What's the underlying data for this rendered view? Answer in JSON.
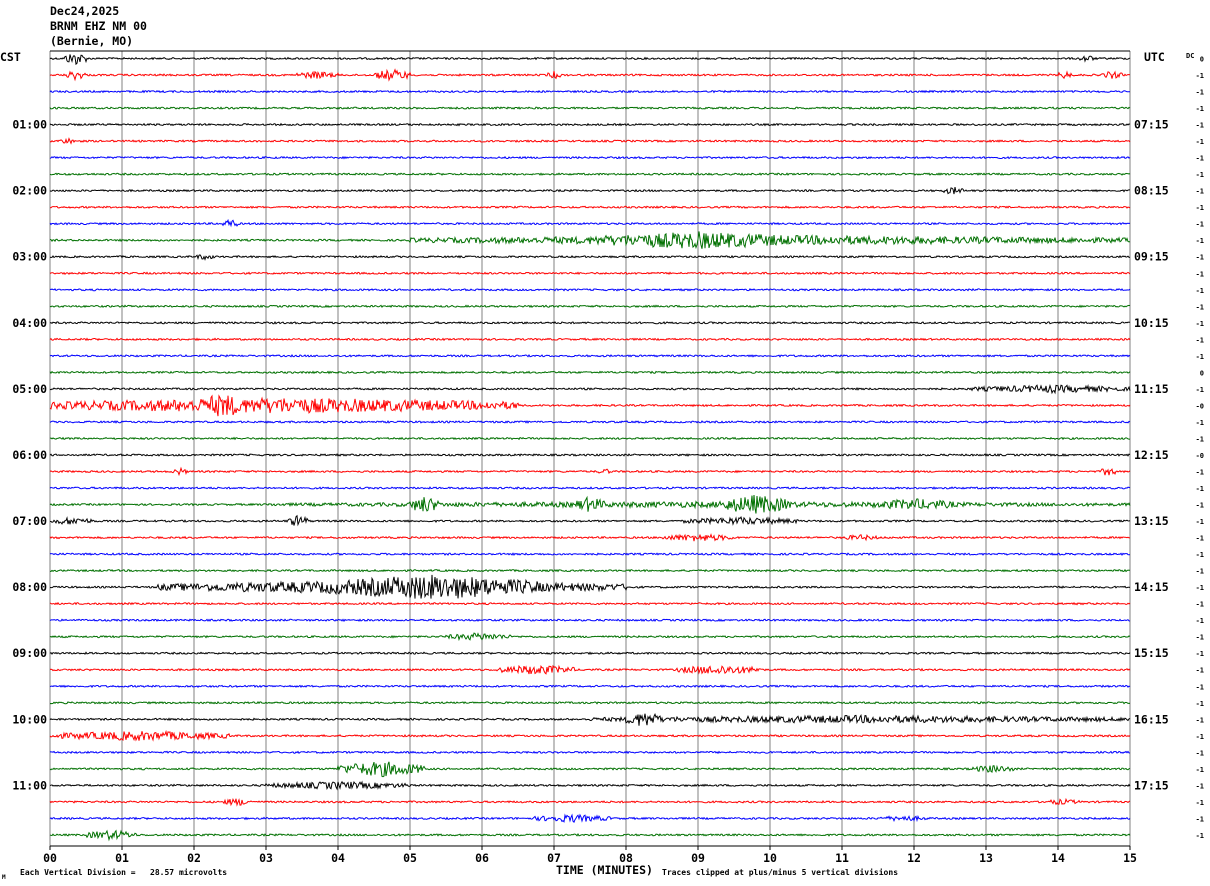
{
  "header": {
    "date": "Dec24,2025",
    "station": "BRNM EHZ NM 00",
    "location": "(Bernie, MO)"
  },
  "left_timezone": "CST",
  "right_timezone": "UTC",
  "dc_label": "DC",
  "footer": {
    "vertical_division": "Each Vertical Division =   28.57 microvolts",
    "xaxis_title": "TIME (MINUTES)",
    "clip_note": "Traces clipped at plus/minus 5 vertical divisions",
    "corner_mark": "M"
  },
  "colors": {
    "trace_cycle": [
      "#000000",
      "#ff0000",
      "#0000ff",
      "#007000"
    ],
    "grid": "#808080"
  },
  "chart_data": {
    "type": "line",
    "title": "BRNM EHZ NM 00",
    "xlabel": "TIME (MINUTES)",
    "xlim": [
      0,
      15
    ],
    "x_ticks": [
      "00",
      "01",
      "02",
      "03",
      "04",
      "05",
      "06",
      "07",
      "08",
      "09",
      "10",
      "11",
      "12",
      "13",
      "14",
      "15"
    ],
    "trace_count": 48,
    "minutes_per_trace": 15,
    "left_hour_labels": [
      {
        "trace": 4,
        "label": "01:00"
      },
      {
        "trace": 8,
        "label": "02:00"
      },
      {
        "trace": 12,
        "label": "03:00"
      },
      {
        "trace": 16,
        "label": "04:00"
      },
      {
        "trace": 20,
        "label": "05:00"
      },
      {
        "trace": 24,
        "label": "06:00"
      },
      {
        "trace": 28,
        "label": "07:00"
      },
      {
        "trace": 32,
        "label": "08:00"
      },
      {
        "trace": 36,
        "label": "09:00"
      },
      {
        "trace": 40,
        "label": "10:00"
      },
      {
        "trace": 44,
        "label": "11:00"
      }
    ],
    "right_hour_labels": [
      {
        "trace": 4,
        "label": "07:15"
      },
      {
        "trace": 8,
        "label": "08:15"
      },
      {
        "trace": 12,
        "label": "09:15"
      },
      {
        "trace": 16,
        "label": "10:15"
      },
      {
        "trace": 20,
        "label": "11:15"
      },
      {
        "trace": 24,
        "label": "12:15"
      },
      {
        "trace": 28,
        "label": "13:15"
      },
      {
        "trace": 32,
        "label": "14:15"
      },
      {
        "trace": 36,
        "label": "15:15"
      },
      {
        "trace": 40,
        "label": "16:15"
      },
      {
        "trace": 44,
        "label": "17:15"
      }
    ],
    "dc_offsets": [
      "0",
      "-1",
      "-1",
      "-1",
      "-1",
      "-1",
      "-1",
      "-1",
      "-1",
      "-1",
      "-1",
      "-1",
      "-1",
      "-1",
      "-1",
      "-1",
      "-1",
      "-1",
      "-1",
      "0",
      "-1",
      "-0",
      "-1",
      "-1",
      "-0",
      "-1",
      "-1",
      "-1",
      "-1",
      "-1",
      "-1",
      "-1",
      "-1",
      "-1",
      "-1",
      "-1",
      "-1",
      "-1",
      "-1",
      "-1",
      "-1",
      "-1",
      "-1",
      "-1",
      "-1",
      "-1",
      "-1",
      "-1"
    ],
    "events": [
      {
        "trace": 0,
        "start": 0.2,
        "end": 0.5,
        "amp": 7
      },
      {
        "trace": 0,
        "start": 14.3,
        "end": 14.5,
        "amp": 4
      },
      {
        "trace": 1,
        "start": 0.2,
        "end": 0.5,
        "amp": 5
      },
      {
        "trace": 1,
        "start": 3.4,
        "end": 4.0,
        "amp": 4
      },
      {
        "trace": 1,
        "start": 4.5,
        "end": 5.0,
        "amp": 6
      },
      {
        "trace": 1,
        "start": 6.9,
        "end": 7.1,
        "amp": 4
      },
      {
        "trace": 1,
        "start": 14.0,
        "end": 14.2,
        "amp": 4
      },
      {
        "trace": 1,
        "start": 14.6,
        "end": 14.9,
        "amp": 4
      },
      {
        "trace": 5,
        "start": 0.1,
        "end": 0.4,
        "amp": 3
      },
      {
        "trace": 8,
        "start": 12.4,
        "end": 12.7,
        "amp": 4
      },
      {
        "trace": 10,
        "start": 2.4,
        "end": 2.6,
        "amp": 5
      },
      {
        "trace": 11,
        "start": 5.0,
        "end": 15.0,
        "amp": 5
      },
      {
        "trace": 11,
        "start": 7.5,
        "end": 10.5,
        "amp": 9
      },
      {
        "trace": 12,
        "start": 2.0,
        "end": 2.3,
        "amp": 3
      },
      {
        "trace": 20,
        "start": 12.8,
        "end": 15.0,
        "amp": 4
      },
      {
        "trace": 21,
        "start": 0.0,
        "end": 6.5,
        "amp": 8
      },
      {
        "trace": 21,
        "start": 2.0,
        "end": 2.8,
        "amp": 12
      },
      {
        "trace": 25,
        "start": 1.7,
        "end": 1.9,
        "amp": 4
      },
      {
        "trace": 25,
        "start": 7.6,
        "end": 7.8,
        "amp": 3
      },
      {
        "trace": 25,
        "start": 14.6,
        "end": 14.8,
        "amp": 5
      },
      {
        "trace": 27,
        "start": 3.0,
        "end": 15.0,
        "amp": 3
      },
      {
        "trace": 27,
        "start": 5.0,
        "end": 5.4,
        "amp": 9
      },
      {
        "trace": 27,
        "start": 7.3,
        "end": 7.7,
        "amp": 8
      },
      {
        "trace": 27,
        "start": 9.3,
        "end": 10.3,
        "amp": 10
      },
      {
        "trace": 27,
        "start": 11.4,
        "end": 12.6,
        "amp": 6
      },
      {
        "trace": 28,
        "start": 0.0,
        "end": 0.6,
        "amp": 4
      },
      {
        "trace": 28,
        "start": 3.3,
        "end": 3.6,
        "amp": 6
      },
      {
        "trace": 28,
        "start": 8.8,
        "end": 10.4,
        "amp": 4
      },
      {
        "trace": 29,
        "start": 8.5,
        "end": 9.5,
        "amp": 4
      },
      {
        "trace": 29,
        "start": 11.0,
        "end": 11.5,
        "amp": 3
      },
      {
        "trace": 32,
        "start": 1.5,
        "end": 8.0,
        "amp": 7
      },
      {
        "trace": 32,
        "start": 3.8,
        "end": 6.8,
        "amp": 13
      },
      {
        "trace": 35,
        "start": 5.5,
        "end": 6.4,
        "amp": 4
      },
      {
        "trace": 37,
        "start": 6.2,
        "end": 7.3,
        "amp": 5
      },
      {
        "trace": 37,
        "start": 8.7,
        "end": 9.9,
        "amp": 5
      },
      {
        "trace": 40,
        "start": 7.5,
        "end": 15.0,
        "amp": 4
      },
      {
        "trace": 40,
        "start": 8.0,
        "end": 8.5,
        "amp": 8
      },
      {
        "trace": 41,
        "start": 0.0,
        "end": 2.5,
        "amp": 5
      },
      {
        "trace": 43,
        "start": 4.0,
        "end": 5.2,
        "amp": 8
      },
      {
        "trace": 43,
        "start": 12.8,
        "end": 13.4,
        "amp": 4
      },
      {
        "trace": 44,
        "start": 3.0,
        "end": 5.0,
        "amp": 4
      },
      {
        "trace": 45,
        "start": 2.4,
        "end": 2.8,
        "amp": 4
      },
      {
        "trace": 45,
        "start": 13.8,
        "end": 14.3,
        "amp": 3
      },
      {
        "trace": 46,
        "start": 6.7,
        "end": 7.8,
        "amp": 4
      },
      {
        "trace": 46,
        "start": 11.5,
        "end": 12.2,
        "amp": 3
      },
      {
        "trace": 47,
        "start": 0.5,
        "end": 1.2,
        "amp": 5
      }
    ]
  }
}
